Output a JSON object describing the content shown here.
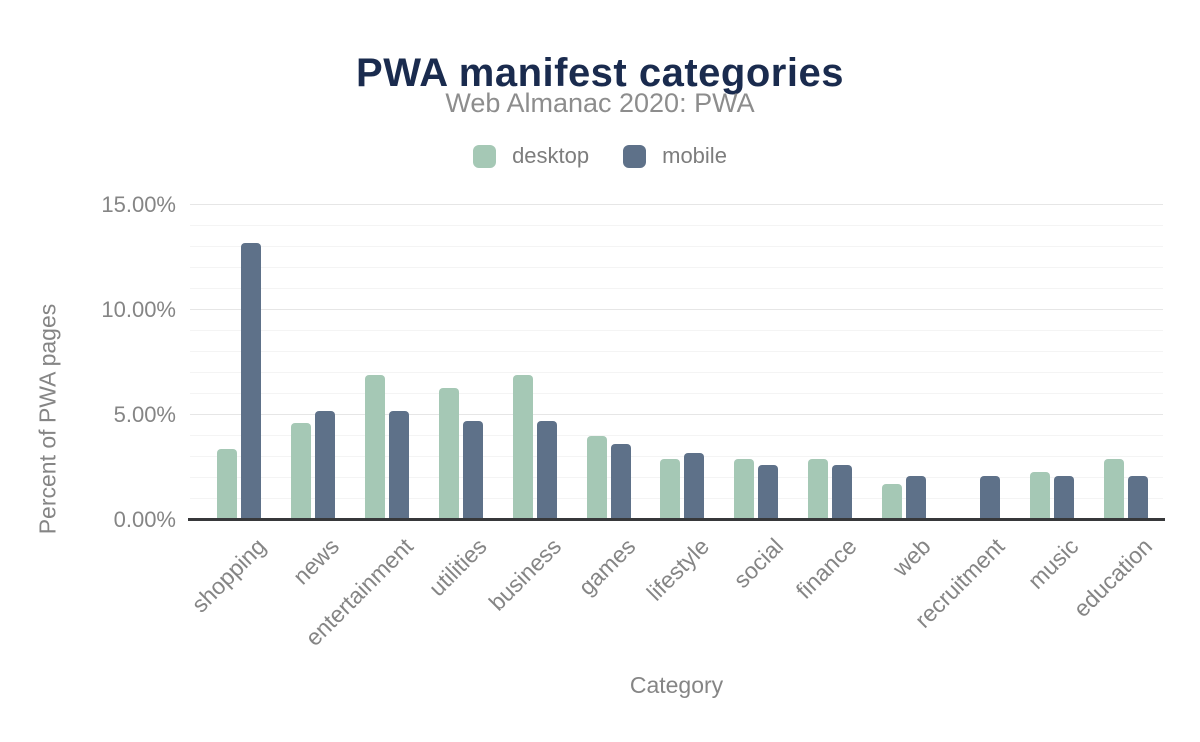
{
  "chart_data": {
    "type": "bar",
    "title": "PWA manifest categories",
    "subtitle": "Web Almanac 2020: PWA",
    "xlabel": "Category",
    "ylabel": "Percent of PWA pages",
    "categories": [
      "shopping",
      "news",
      "entertainment",
      "utilities",
      "business",
      "games",
      "lifestyle",
      "social",
      "finance",
      "web",
      "recruitment",
      "music",
      "education"
    ],
    "series": [
      {
        "name": "desktop",
        "color": "#a5c8b5",
        "values": [
          3.4,
          4.6,
          6.9,
          6.3,
          6.9,
          4.0,
          2.9,
          2.9,
          2.9,
          1.7,
          0,
          2.3,
          2.9
        ]
      },
      {
        "name": "mobile",
        "color": "#5e7189",
        "values": [
          13.2,
          5.2,
          5.2,
          4.7,
          4.7,
          3.6,
          3.2,
          2.6,
          2.6,
          2.1,
          2.1,
          2.1,
          2.1
        ]
      }
    ],
    "ylim": [
      0,
      15
    ],
    "yticks": [
      {
        "value": 0,
        "label": "0.00%"
      },
      {
        "value": 5,
        "label": "5.00%"
      },
      {
        "value": 10,
        "label": "10.00%"
      },
      {
        "value": 15,
        "label": "15.00%"
      }
    ],
    "grid": {
      "minor_step": 1,
      "major_step": 5
    },
    "legend_position": "top",
    "value_format": "percent"
  },
  "colors": {
    "title": "#1a2b4e",
    "subtitle": "#8d8d8d",
    "axis_text": "#858585",
    "axis_line": "#37383a",
    "gridline_minor": "#f4f4f4",
    "gridline_major": "#e6e6e6"
  }
}
